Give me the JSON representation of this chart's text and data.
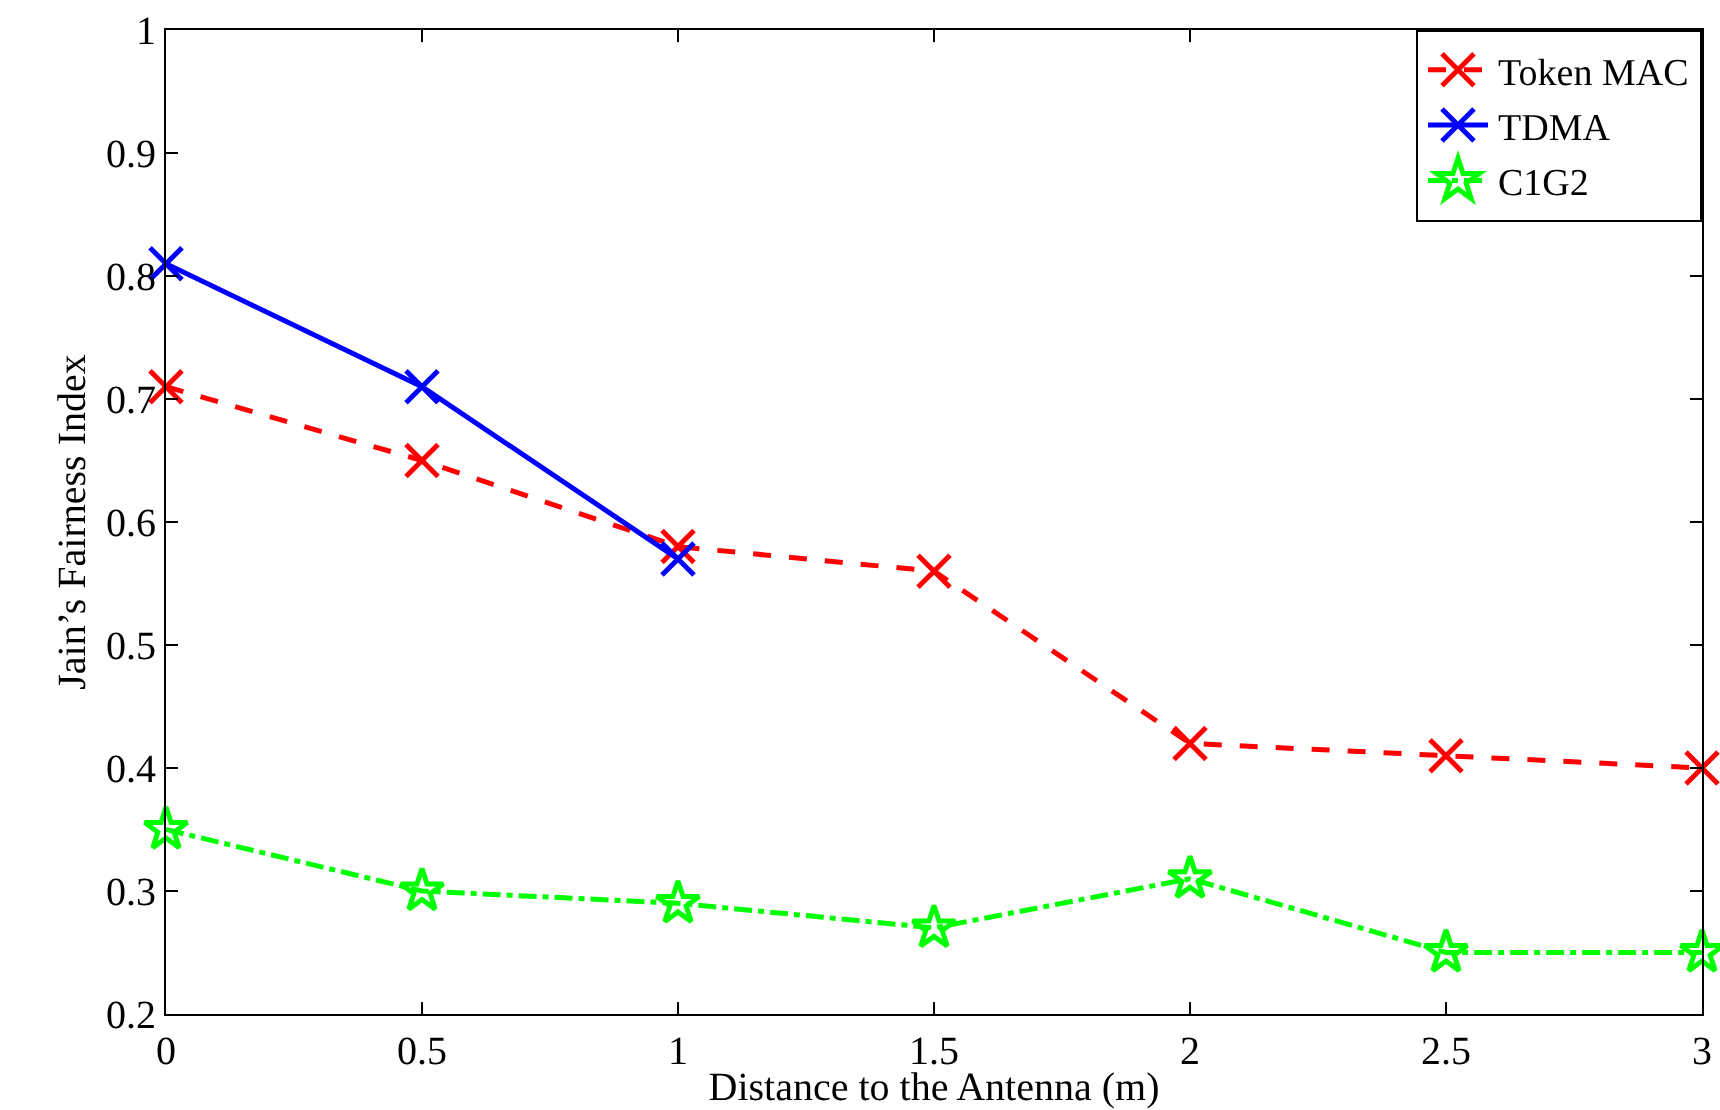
{
  "chart_data": {
    "type": "line",
    "xlabel": "Distance to the Antenna (m)",
    "ylabel": "Jain’s Fairness Index",
    "x": [
      0,
      0.5,
      1,
      1.5,
      2,
      2.5,
      3
    ],
    "series": [
      {
        "name": "Token MAC",
        "color": "#ff0000",
        "values": [
          0.71,
          0.65,
          0.58,
          0.56,
          0.42,
          0.41,
          0.4
        ],
        "marker": "cross",
        "line_style": "dashed"
      },
      {
        "name": "TDMA",
        "color": "#0000ff",
        "x": [
          0,
          0.5,
          1
        ],
        "values": [
          0.81,
          0.71,
          0.57
        ],
        "marker": "cross",
        "line_style": "solid"
      },
      {
        "name": "C1G2",
        "color": "#00ff00",
        "values": [
          0.35,
          0.3,
          0.29,
          0.27,
          0.31,
          0.25,
          0.25
        ],
        "marker": "star",
        "line_style": "dashdot"
      }
    ],
    "xlim": [
      0,
      3
    ],
    "xticks": [
      0,
      0.5,
      1,
      1.5,
      2,
      2.5,
      3
    ],
    "ylim": [
      0.2,
      1
    ],
    "yticks": [
      0.2,
      0.3,
      0.4,
      0.5,
      0.6,
      0.7,
      0.8,
      0.9,
      1
    ],
    "legend": "top right"
  }
}
